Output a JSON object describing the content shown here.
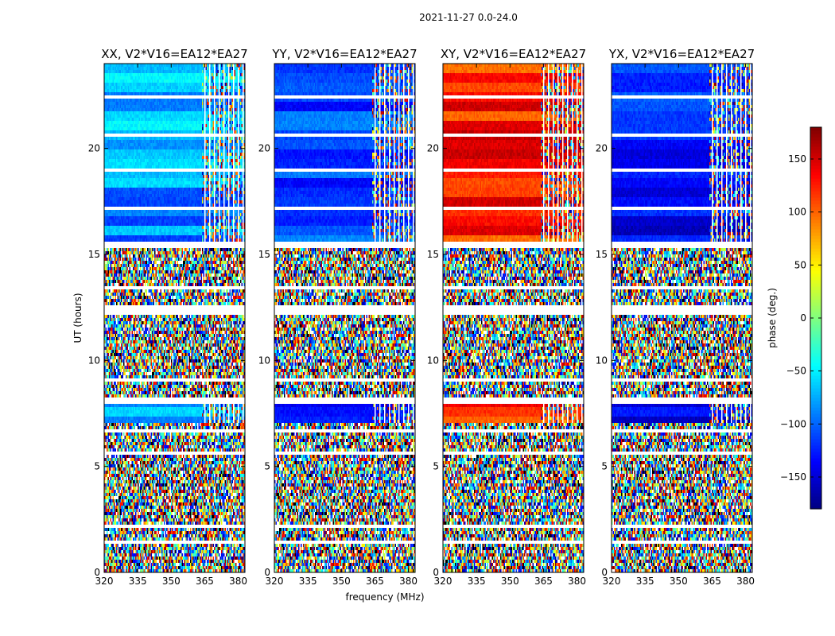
{
  "chart_data": {
    "type": "heatmap",
    "suptitle": "2021-11-27 0.0-24.0",
    "xlabel": "frequency (MHz)",
    "ylabel": "UT (hours)",
    "xlim": [
      320,
      383
    ],
    "ylim": [
      0,
      24
    ],
    "xticks": [
      320,
      335,
      350,
      365,
      380
    ],
    "yticks": [
      0,
      5,
      10,
      15,
      20
    ],
    "panels": [
      {
        "title": "XX, V2*V16=EA12*EA27",
        "mean_phase_deg": -80,
        "spread_deg": 35
      },
      {
        "title": "YY, V2*V16=EA12*EA27",
        "mean_phase_deg": -115,
        "spread_deg": 30
      },
      {
        "title": "XY, V2*V16=EA12*EA27",
        "mean_phase_deg": 125,
        "spread_deg": 30
      },
      {
        "title": "YX, V2*V16=EA12*EA27",
        "mean_phase_deg": -130,
        "spread_deg": 30
      }
    ],
    "coherent_bands_ut": [
      [
        15.6,
        24.0
      ],
      [
        7.1,
        8.0
      ]
    ],
    "blank_rows_ut": [
      1.45,
      1.55,
      6.75,
      8.1,
      8.2,
      12.3,
      12.5,
      13.5,
      15.45,
      15.55,
      17.3,
      19.1,
      20.7,
      22.5
    ],
    "colorbar": {
      "label": "phase (deg.)",
      "range": [
        -180,
        180
      ],
      "ticks": [
        -150,
        -100,
        -50,
        0,
        50,
        100,
        150
      ],
      "colormap": "jet"
    }
  }
}
